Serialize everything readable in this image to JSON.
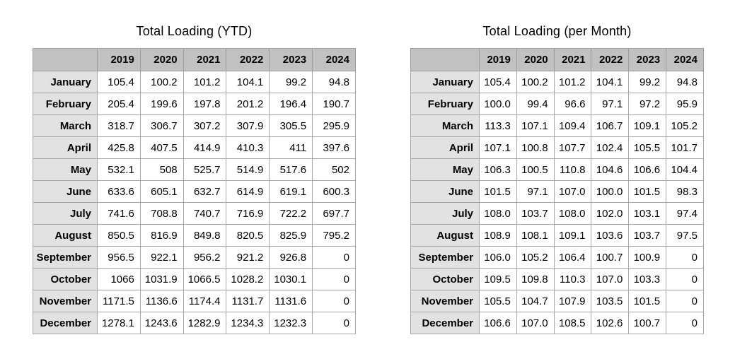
{
  "colors": {
    "page_bg": "#ffffff",
    "header_bg": "#c1c1c1",
    "month_col_bg": "#e2e2e2",
    "cell_bg": "#ffffff",
    "border": "#a6a6a6",
    "text": "#000000"
  },
  "tables": [
    {
      "title": "Total Loading (YTD)",
      "columns": [
        "2019",
        "2020",
        "2021",
        "2022",
        "2023",
        "2024"
      ],
      "rows": [
        {
          "label": "January",
          "values": [
            "105.4",
            "100.2",
            "101.2",
            "104.1",
            "99.2",
            "94.8"
          ]
        },
        {
          "label": "February",
          "values": [
            "205.4",
            "199.6",
            "197.8",
            "201.2",
            "196.4",
            "190.7"
          ]
        },
        {
          "label": "March",
          "values": [
            "318.7",
            "306.7",
            "307.2",
            "307.9",
            "305.5",
            "295.9"
          ]
        },
        {
          "label": "April",
          "values": [
            "425.8",
            "407.5",
            "414.9",
            "410.3",
            "411",
            "397.6"
          ]
        },
        {
          "label": "May",
          "values": [
            "532.1",
            "508",
            "525.7",
            "514.9",
            "517.6",
            "502"
          ]
        },
        {
          "label": "June",
          "values": [
            "633.6",
            "605.1",
            "632.7",
            "614.9",
            "619.1",
            "600.3"
          ]
        },
        {
          "label": "July",
          "values": [
            "741.6",
            "708.8",
            "740.7",
            "716.9",
            "722.2",
            "697.7"
          ]
        },
        {
          "label": "August",
          "values": [
            "850.5",
            "816.9",
            "849.8",
            "820.5",
            "825.9",
            "795.2"
          ]
        },
        {
          "label": "September",
          "values": [
            "956.5",
            "922.1",
            "956.2",
            "921.2",
            "926.8",
            "0"
          ]
        },
        {
          "label": "October",
          "values": [
            "1066",
            "1031.9",
            "1066.5",
            "1028.2",
            "1030.1",
            "0"
          ]
        },
        {
          "label": "November",
          "values": [
            "1171.5",
            "1136.6",
            "1174.4",
            "1131.7",
            "1131.6",
            "0"
          ]
        },
        {
          "label": "December",
          "values": [
            "1278.1",
            "1243.6",
            "1282.9",
            "1234.3",
            "1232.3",
            "0"
          ]
        }
      ]
    },
    {
      "title": "Total Loading (per Month)",
      "columns": [
        "2019",
        "2020",
        "2021",
        "2022",
        "2023",
        "2024"
      ],
      "rows": [
        {
          "label": "January",
          "values": [
            "105.4",
            "100.2",
            "101.2",
            "104.1",
            "99.2",
            "94.8"
          ]
        },
        {
          "label": "February",
          "values": [
            "100.0",
            "99.4",
            "96.6",
            "97.1",
            "97.2",
            "95.9"
          ]
        },
        {
          "label": "March",
          "values": [
            "113.3",
            "107.1",
            "109.4",
            "106.7",
            "109.1",
            "105.2"
          ]
        },
        {
          "label": "April",
          "values": [
            "107.1",
            "100.8",
            "107.7",
            "102.4",
            "105.5",
            "101.7"
          ]
        },
        {
          "label": "May",
          "values": [
            "106.3",
            "100.5",
            "110.8",
            "104.6",
            "106.6",
            "104.4"
          ]
        },
        {
          "label": "June",
          "values": [
            "101.5",
            "97.1",
            "107.0",
            "100.0",
            "101.5",
            "98.3"
          ]
        },
        {
          "label": "July",
          "values": [
            "108.0",
            "103.7",
            "108.0",
            "102.0",
            "103.1",
            "97.4"
          ]
        },
        {
          "label": "August",
          "values": [
            "108.9",
            "108.1",
            "109.1",
            "103.6",
            "103.7",
            "97.5"
          ]
        },
        {
          "label": "September",
          "values": [
            "106.0",
            "105.2",
            "106.4",
            "100.7",
            "100.9",
            "0"
          ]
        },
        {
          "label": "October",
          "values": [
            "109.5",
            "109.8",
            "110.3",
            "107.0",
            "103.3",
            "0"
          ]
        },
        {
          "label": "November",
          "values": [
            "105.5",
            "104.7",
            "107.9",
            "103.5",
            "101.5",
            "0"
          ]
        },
        {
          "label": "December",
          "values": [
            "106.6",
            "107.0",
            "108.5",
            "102.6",
            "100.7",
            "0"
          ]
        }
      ]
    }
  ],
  "chart_data": [
    {
      "type": "table",
      "title": "Total Loading (YTD)",
      "columns": [
        "2019",
        "2020",
        "2021",
        "2022",
        "2023",
        "2024"
      ],
      "row_labels": [
        "January",
        "February",
        "March",
        "April",
        "May",
        "June",
        "July",
        "August",
        "September",
        "October",
        "November",
        "December"
      ],
      "values": [
        [
          105.4,
          100.2,
          101.2,
          104.1,
          99.2,
          94.8
        ],
        [
          205.4,
          199.6,
          197.8,
          201.2,
          196.4,
          190.7
        ],
        [
          318.7,
          306.7,
          307.2,
          307.9,
          305.5,
          295.9
        ],
        [
          425.8,
          407.5,
          414.9,
          410.3,
          411,
          397.6
        ],
        [
          532.1,
          508,
          525.7,
          514.9,
          517.6,
          502
        ],
        [
          633.6,
          605.1,
          632.7,
          614.9,
          619.1,
          600.3
        ],
        [
          741.6,
          708.8,
          740.7,
          716.9,
          722.2,
          697.7
        ],
        [
          850.5,
          816.9,
          849.8,
          820.5,
          825.9,
          795.2
        ],
        [
          956.5,
          922.1,
          956.2,
          921.2,
          926.8,
          0
        ],
        [
          1066,
          1031.9,
          1066.5,
          1028.2,
          1030.1,
          0
        ],
        [
          1171.5,
          1136.6,
          1174.4,
          1131.7,
          1131.6,
          0
        ],
        [
          1278.1,
          1243.6,
          1282.9,
          1234.3,
          1232.3,
          0
        ]
      ]
    },
    {
      "type": "table",
      "title": "Total Loading (per Month)",
      "columns": [
        "2019",
        "2020",
        "2021",
        "2022",
        "2023",
        "2024"
      ],
      "row_labels": [
        "January",
        "February",
        "March",
        "April",
        "May",
        "June",
        "July",
        "August",
        "September",
        "October",
        "November",
        "December"
      ],
      "values": [
        [
          105.4,
          100.2,
          101.2,
          104.1,
          99.2,
          94.8
        ],
        [
          100.0,
          99.4,
          96.6,
          97.1,
          97.2,
          95.9
        ],
        [
          113.3,
          107.1,
          109.4,
          106.7,
          109.1,
          105.2
        ],
        [
          107.1,
          100.8,
          107.7,
          102.4,
          105.5,
          101.7
        ],
        [
          106.3,
          100.5,
          110.8,
          104.6,
          106.6,
          104.4
        ],
        [
          101.5,
          97.1,
          107.0,
          100.0,
          101.5,
          98.3
        ],
        [
          108.0,
          103.7,
          108.0,
          102.0,
          103.1,
          97.4
        ],
        [
          108.9,
          108.1,
          109.1,
          103.6,
          103.7,
          97.5
        ],
        [
          106.0,
          105.2,
          106.4,
          100.7,
          100.9,
          0
        ],
        [
          109.5,
          109.8,
          110.3,
          107.0,
          103.3,
          0
        ],
        [
          105.5,
          104.7,
          107.9,
          103.5,
          101.5,
          0
        ],
        [
          106.6,
          107.0,
          108.5,
          102.6,
          100.7,
          0
        ]
      ]
    }
  ]
}
